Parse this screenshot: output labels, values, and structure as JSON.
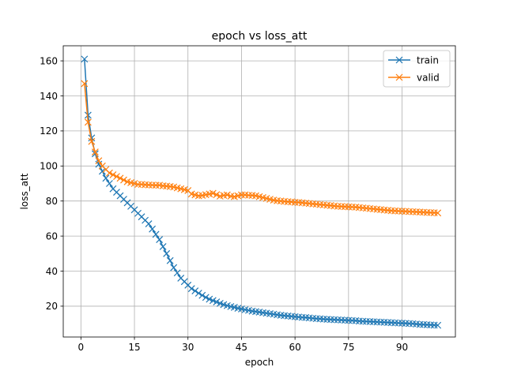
{
  "chart_data": {
    "type": "line",
    "title": "epoch vs loss_att",
    "xlabel": "epoch",
    "ylabel": "loss_att",
    "xlim": [
      -4.95,
      104.95
    ],
    "ylim": [
      2.4,
      168.6
    ],
    "xticks": [
      0,
      15,
      30,
      45,
      60,
      75,
      90
    ],
    "yticks": [
      20,
      40,
      60,
      80,
      100,
      120,
      140,
      160
    ],
    "grid": true,
    "legend_position": "top-right",
    "marker": "x",
    "x": [
      1,
      2,
      3,
      4,
      5,
      6,
      7,
      8,
      9,
      10,
      11,
      12,
      13,
      14,
      15,
      16,
      17,
      18,
      19,
      20,
      21,
      22,
      23,
      24,
      25,
      26,
      27,
      28,
      29,
      30,
      31,
      32,
      33,
      34,
      35,
      36,
      37,
      38,
      39,
      40,
      41,
      42,
      43,
      44,
      45,
      46,
      47,
      48,
      49,
      50,
      51,
      52,
      53,
      54,
      55,
      56,
      57,
      58,
      59,
      60,
      61,
      62,
      63,
      64,
      65,
      66,
      67,
      68,
      69,
      70,
      71,
      72,
      73,
      74,
      75,
      76,
      77,
      78,
      79,
      80,
      81,
      82,
      83,
      84,
      85,
      86,
      87,
      88,
      89,
      90,
      91,
      92,
      93,
      94,
      95,
      96,
      97,
      98,
      99,
      100
    ],
    "series": [
      {
        "name": "train",
        "color": "#1f77b4",
        "values": [
          161,
          129,
          116,
          107,
          101,
          97,
          93,
          90,
          87,
          85,
          83,
          81,
          79,
          77,
          75,
          73,
          71,
          69,
          67,
          64,
          61,
          58,
          54,
          50,
          46,
          42,
          39,
          36,
          34,
          32,
          30,
          28.7,
          27.4,
          26.2,
          25,
          24,
          23.2,
          22.4,
          21.6,
          20.9,
          20.3,
          19.8,
          19.3,
          18.8,
          18.4,
          18,
          17.6,
          17.2,
          16.9,
          16.6,
          16.3,
          16,
          15.7,
          15.4,
          15.1,
          14.8,
          14.6,
          14.4,
          14.2,
          14,
          13.8,
          13.6,
          13.5,
          13.3,
          13.1,
          12.9,
          12.8,
          12.6,
          12.5,
          12.4,
          12.3,
          12.2,
          12.1,
          12,
          11.9,
          11.8,
          11.7,
          11.5,
          11.4,
          11.3,
          11.2,
          11.1,
          11,
          10.9,
          10.8,
          10.7,
          10.6,
          10.5,
          10.4,
          10.3,
          10.2,
          10.1,
          10,
          9.8,
          9.6,
          9.5,
          9.4,
          9.3,
          9.2,
          9.1
        ]
      },
      {
        "name": "valid",
        "color": "#ff7f0e",
        "values": [
          147,
          125,
          114,
          108,
          103,
          100,
          98,
          96,
          95,
          94,
          93,
          92,
          91,
          90.5,
          90,
          89.5,
          89.5,
          89.3,
          89.2,
          89.1,
          89,
          89,
          88.7,
          88.5,
          88.3,
          88,
          87.5,
          87,
          86.5,
          86,
          84,
          83.5,
          83,
          83.2,
          83.6,
          84,
          84.4,
          83.6,
          82.8,
          83.2,
          83.5,
          82.8,
          82.5,
          83,
          83.5,
          83.5,
          83.3,
          83.2,
          83,
          82.5,
          82,
          81.5,
          81,
          80.5,
          80.2,
          80,
          79.8,
          79.6,
          79.5,
          79.3,
          79.2,
          79,
          78.8,
          78.6,
          78.4,
          78.2,
          78,
          77.8,
          77.6,
          77.4,
          77.2,
          77,
          76.9,
          76.8,
          76.7,
          76.6,
          76.5,
          76.3,
          76.1,
          75.9,
          75.7,
          75.5,
          75.3,
          75.1,
          74.9,
          74.7,
          74.5,
          74.4,
          74.3,
          74.2,
          74.1,
          74,
          73.9,
          73.8,
          73.7,
          73.6,
          73.5,
          73.4,
          73.3,
          73.2
        ]
      }
    ]
  }
}
